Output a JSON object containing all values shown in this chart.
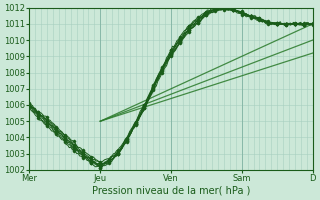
{
  "xlabel": "Pression niveau de la mer( hPa )",
  "ylim": [
    1002,
    1012
  ],
  "yticks": [
    1002,
    1003,
    1004,
    1005,
    1006,
    1007,
    1008,
    1009,
    1010,
    1011,
    1012
  ],
  "xtick_labels": [
    "Mer",
    "Jeu",
    "Ven",
    "Sam",
    "D"
  ],
  "xtick_positions": [
    0,
    48,
    96,
    144,
    192
  ],
  "background_color": "#cce8d8",
  "grid_color_fine": "#a8cfc0",
  "grid_color_major": "#88b8a8",
  "dark_green": "#1a5c1a",
  "light_green": "#2a7a2a",
  "total_t": 192,
  "straight_lines": [
    {
      "x0": 48,
      "y0": 1005.0,
      "x1": 192,
      "y1": 1011.0
    },
    {
      "x0": 48,
      "y0": 1005.0,
      "x1": 192,
      "y1": 1010.0
    },
    {
      "x0": 48,
      "y0": 1005.0,
      "x1": 192,
      "y1": 1009.2
    }
  ],
  "curved_lines": [
    [
      1006.0,
      1005.5,
      1005.0,
      1004.5,
      1004.0,
      1003.5,
      1003.0,
      1002.5,
      1002.2,
      1002.5,
      1003.0,
      1003.8,
      1004.8,
      1005.8,
      1007.0,
      1008.2,
      1009.2,
      1010.0,
      1010.7,
      1011.2,
      1011.7,
      1011.9,
      1012.0,
      1011.9,
      1011.7,
      1011.5,
      1011.3,
      1011.1,
      1011.0,
      1011.0,
      1011.0,
      1011.0,
      1011.0
    ],
    [
      1005.8,
      1005.2,
      1004.7,
      1004.2,
      1003.7,
      1003.2,
      1002.8,
      1002.4,
      1002.1,
      1002.4,
      1003.0,
      1003.8,
      1004.9,
      1006.0,
      1007.2,
      1008.3,
      1009.3,
      1010.1,
      1010.8,
      1011.3,
      1011.7,
      1011.9,
      1012.0,
      1011.9,
      1011.7,
      1011.5,
      1011.3,
      1011.1,
      1011.0,
      1011.0,
      1011.0,
      1011.0,
      1011.0
    ],
    [
      1006.0,
      1005.5,
      1005.1,
      1004.6,
      1004.1,
      1003.6,
      1003.1,
      1002.7,
      1002.4,
      1002.6,
      1003.1,
      1003.9,
      1004.9,
      1005.9,
      1007.1,
      1008.2,
      1009.1,
      1009.9,
      1010.6,
      1011.1,
      1011.6,
      1011.85,
      1011.95,
      1011.85,
      1011.65,
      1011.45,
      1011.25,
      1011.1,
      1011.05,
      1011.0,
      1011.0,
      1011.0,
      1011.0
    ],
    [
      1006.1,
      1005.6,
      1005.2,
      1004.7,
      1004.2,
      1003.7,
      1003.2,
      1002.8,
      1002.5,
      1002.7,
      1003.2,
      1004.0,
      1005.0,
      1006.0,
      1007.2,
      1008.3,
      1009.4,
      1010.2,
      1010.9,
      1011.4,
      1011.8,
      1012.0,
      1012.0,
      1011.9,
      1011.7,
      1011.5,
      1011.3,
      1011.1,
      1011.0,
      1011.0,
      1011.0,
      1011.0,
      1011.0
    ],
    [
      1005.9,
      1005.3,
      1004.8,
      1004.3,
      1003.8,
      1003.3,
      1002.9,
      1002.5,
      1002.3,
      1002.5,
      1003.0,
      1003.8,
      1004.8,
      1005.8,
      1006.9,
      1008.0,
      1009.0,
      1009.8,
      1010.5,
      1011.1,
      1011.5,
      1011.8,
      1011.9,
      1011.8,
      1011.6,
      1011.4,
      1011.2,
      1011.0,
      1011.0,
      1011.0,
      1011.0,
      1011.0,
      1011.0
    ],
    [
      1006.0,
      1005.4,
      1004.9,
      1004.4,
      1003.9,
      1003.4,
      1002.9,
      1002.6,
      1002.3,
      1002.6,
      1003.1,
      1003.9,
      1004.9,
      1005.9,
      1007.1,
      1008.2,
      1009.2,
      1010.0,
      1010.7,
      1011.2,
      1011.65,
      1011.9,
      1012.0,
      1011.9,
      1011.7,
      1011.5,
      1011.3,
      1011.1,
      1011.0,
      1011.0,
      1011.0,
      1011.0,
      1011.0
    ],
    [
      1006.0,
      1005.5,
      1005.0,
      1004.5,
      1004.0,
      1003.5,
      1003.0,
      1002.6,
      1002.3,
      1002.5,
      1003.0,
      1003.8,
      1004.8,
      1005.8,
      1007.0,
      1008.1,
      1009.1,
      1009.9,
      1010.6,
      1011.15,
      1011.6,
      1011.85,
      1011.95,
      1011.85,
      1011.65,
      1011.45,
      1011.25,
      1011.05,
      1011.0,
      1011.0,
      1011.0,
      1011.0,
      1011.0
    ]
  ]
}
